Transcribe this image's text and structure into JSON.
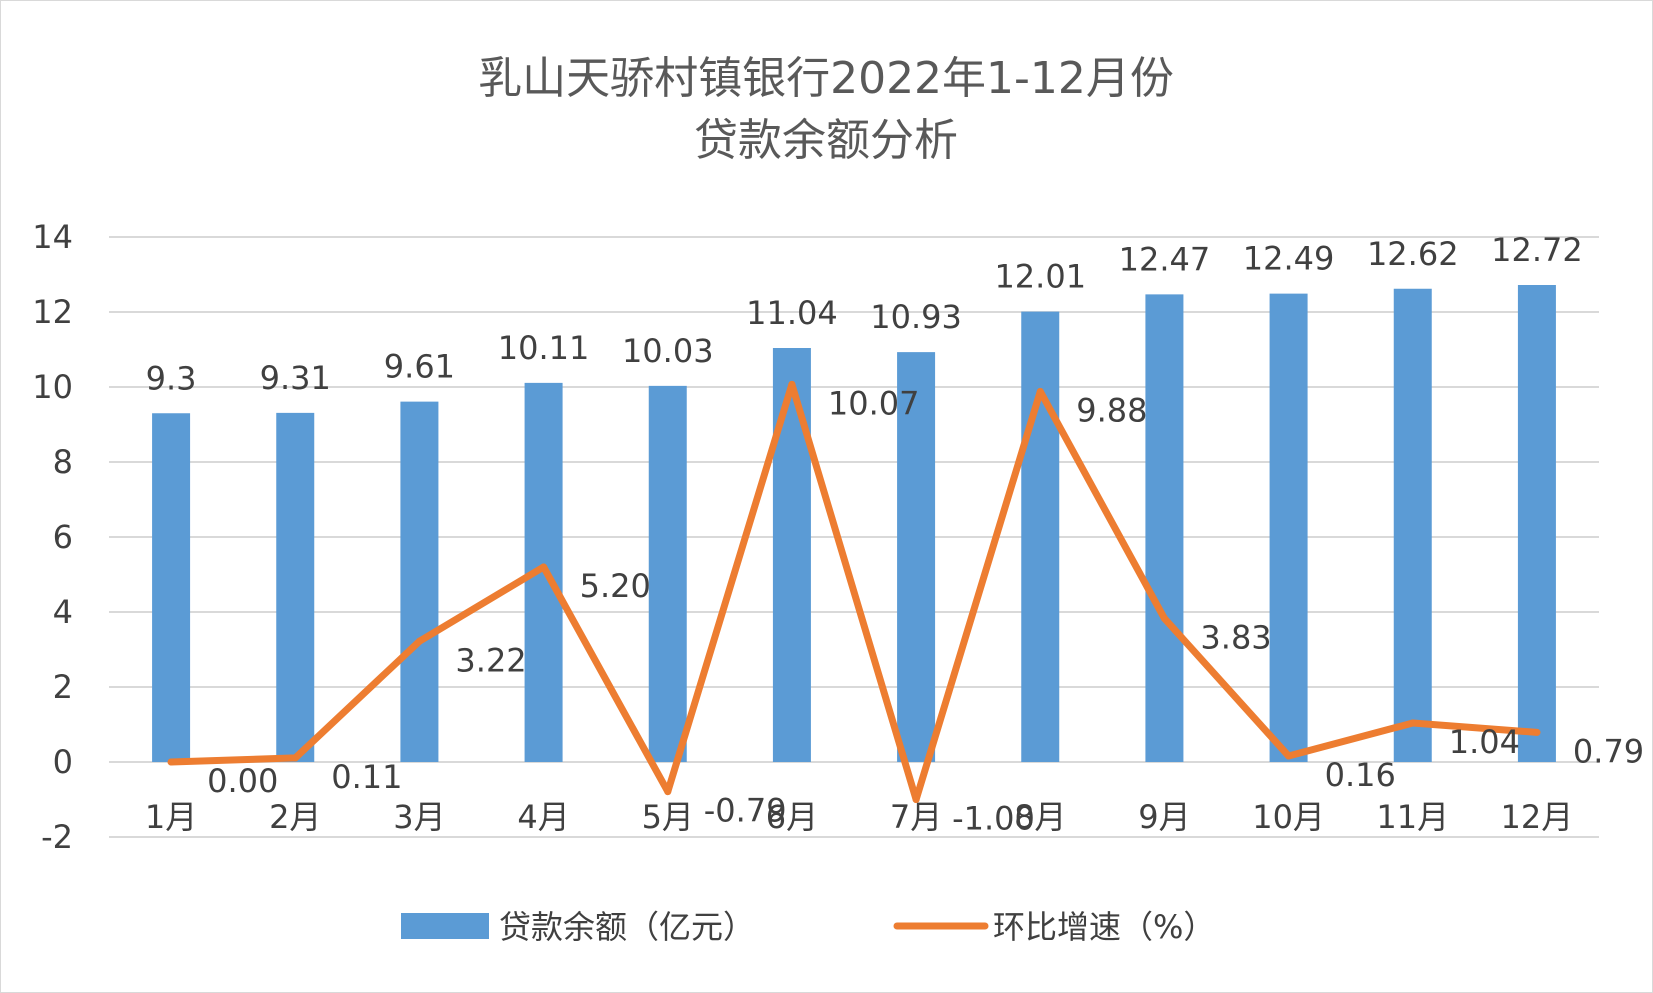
{
  "chart_data": {
    "type": "bar",
    "title_lines": [
      "乳山天骄村镇银行2022年1-12月份",
      "贷款余额分析"
    ],
    "categories": [
      "1月",
      "2月",
      "3月",
      "4月",
      "5月",
      "6月",
      "7月",
      "8月",
      "9月",
      "10月",
      "11月",
      "12月"
    ],
    "ylim": [
      -2,
      14
    ],
    "yticks": [
      14,
      12,
      10,
      8,
      6,
      4,
      2,
      0,
      -2
    ],
    "grid": true,
    "legend_position": "bottom",
    "series": [
      {
        "name": "贷款余额（亿元）",
        "type": "bar",
        "color": "#5b9bd5",
        "values": [
          9.3,
          9.31,
          9.61,
          10.11,
          10.03,
          11.04,
          10.93,
          12.01,
          12.47,
          12.49,
          12.62,
          12.72
        ],
        "labels": [
          "9.3",
          "9.31",
          "9.61",
          "10.11",
          "10.03",
          "11.04",
          "10.93",
          "12.01",
          "12.47",
          "12.49",
          "12.62",
          "12.72"
        ]
      },
      {
        "name": "环比增速（%）",
        "type": "line",
        "color": "#ed7d31",
        "values": [
          0.0,
          0.11,
          3.22,
          5.2,
          -0.79,
          10.07,
          -1.0,
          9.88,
          3.83,
          0.16,
          1.04,
          0.79
        ],
        "labels": [
          "0.00",
          "0.11",
          "3.22",
          "5.20",
          "-0.79",
          "10.07",
          "-1.00",
          "9.88",
          "3.83",
          "0.16",
          "1.04",
          "0.79"
        ]
      }
    ]
  }
}
